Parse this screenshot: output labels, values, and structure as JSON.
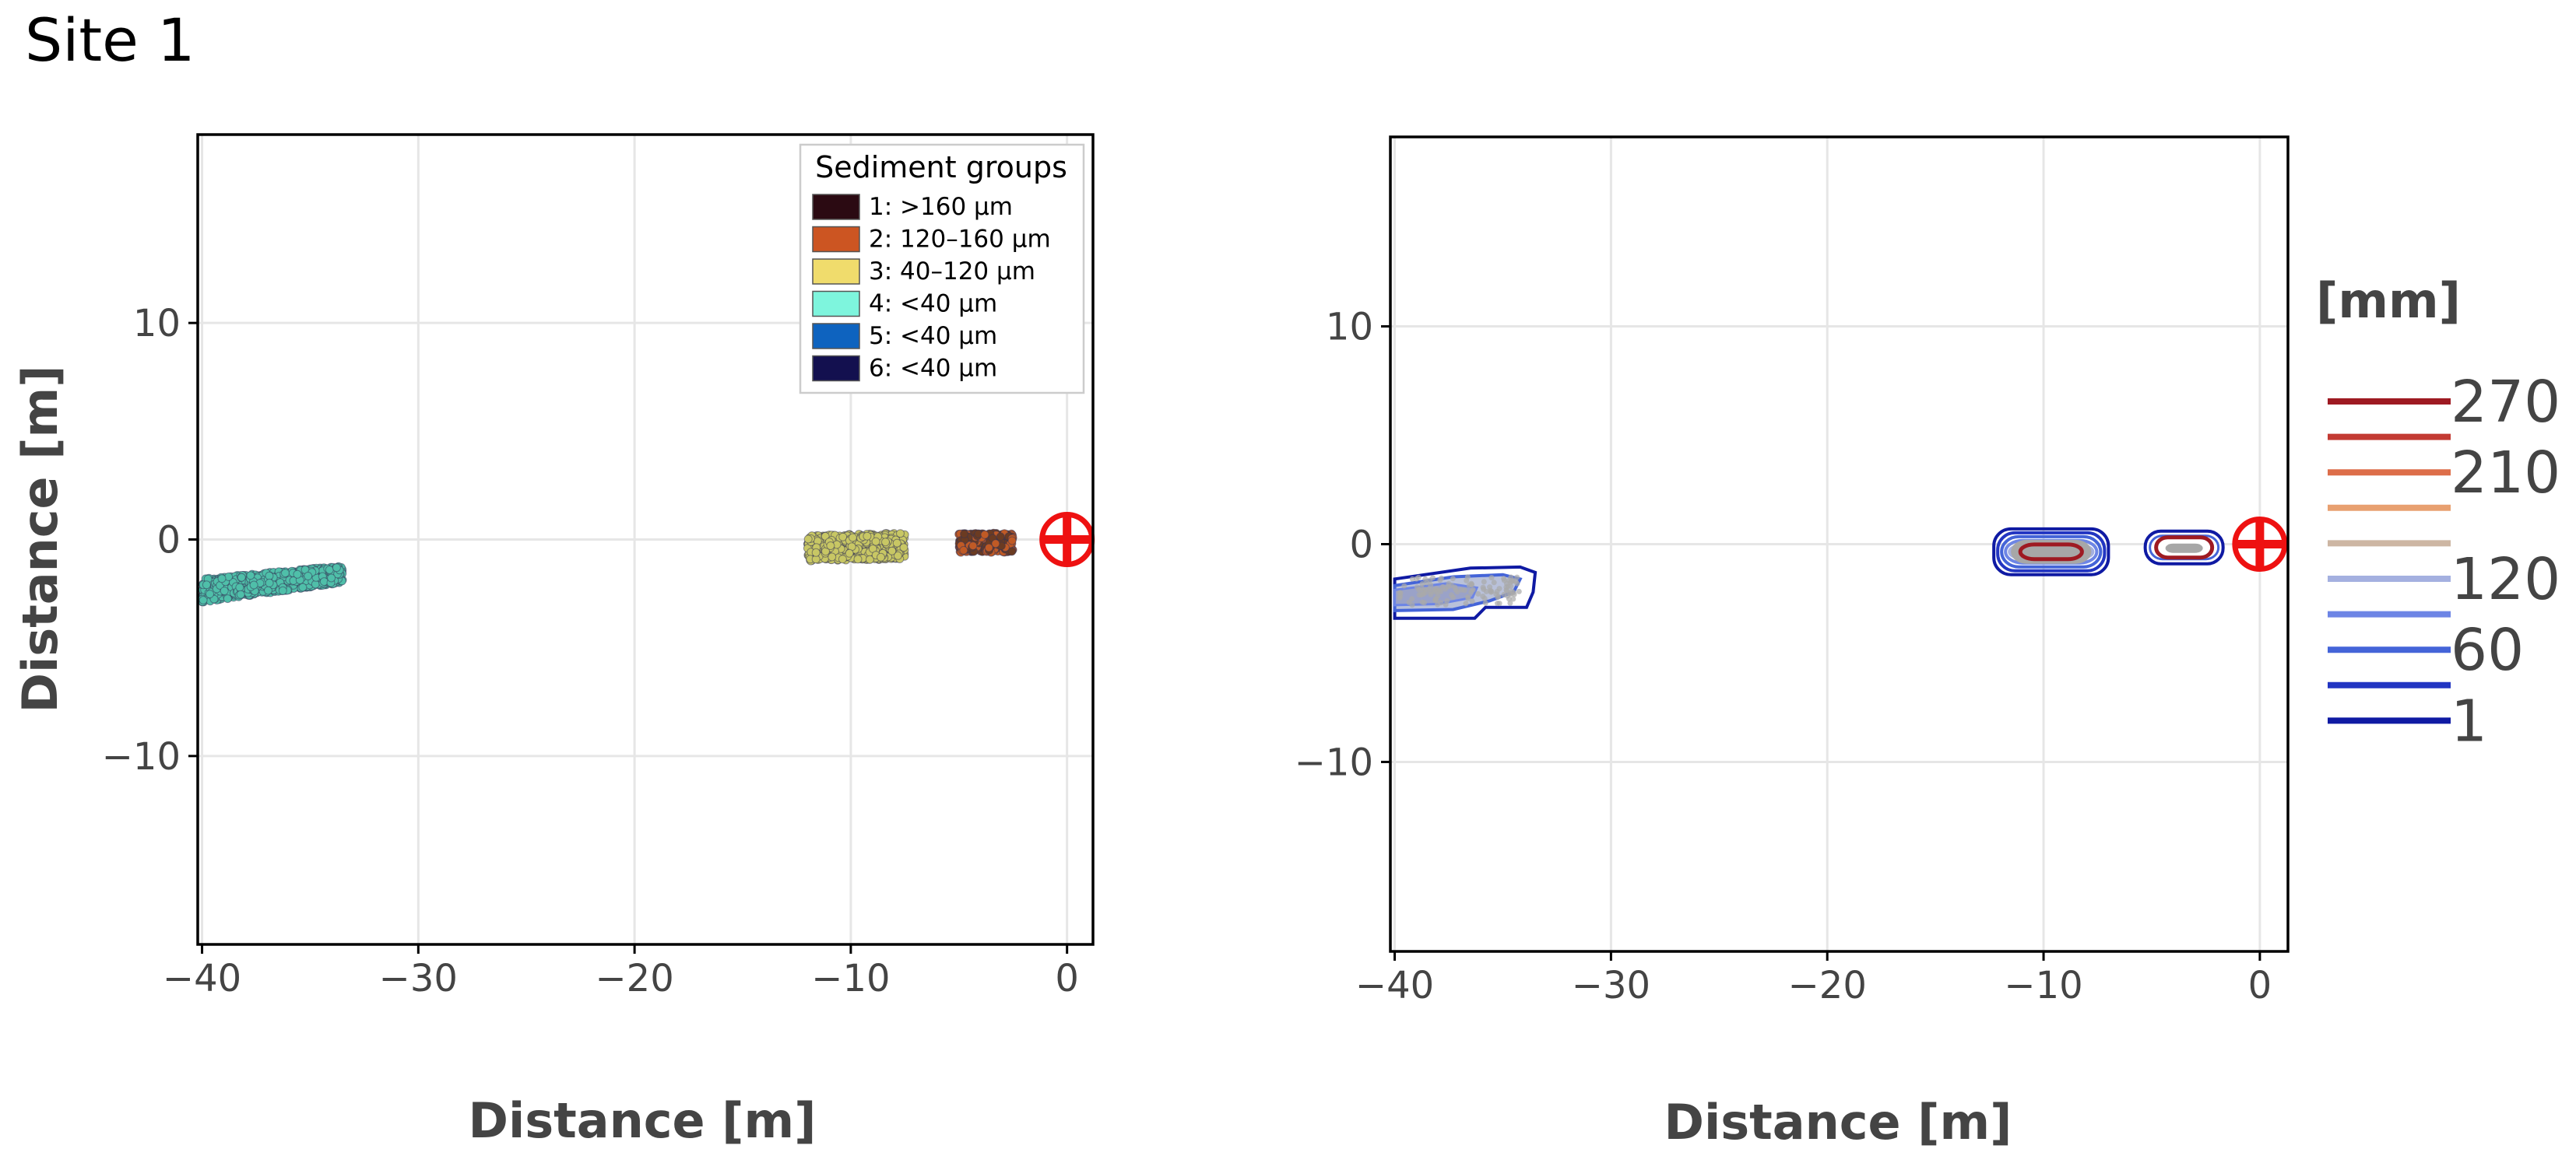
{
  "figure_title": "Site 1",
  "colors": {
    "group1": "#2b0a12",
    "group2": "#cc5522",
    "group3": "#f0dc6c",
    "group4": "#7ef5dd",
    "group5": "#0e63bf",
    "group6": "#13104f",
    "scatter_cluster_1": "#4fbfa9",
    "scatter_cluster_2": "#c8c764",
    "scatter_cluster_3": "#6b3b22",
    "scatter_cluster_3b": "#c05a25",
    "marker": "#ee1111",
    "contour_fill": "#a7a7a7",
    "grid": "#e6e6e6"
  },
  "chart_data": [
    {
      "type": "scatter",
      "title": "",
      "xlabel": "Distance [m]",
      "ylabel": "Distance [m]",
      "xlim": [
        -40.2,
        1.2
      ],
      "ylim": [
        -18.7,
        18.7
      ],
      "xticks": [
        -40,
        -30,
        -20,
        -10,
        0
      ],
      "yticks": [
        -10,
        0,
        10
      ],
      "xtick_labels": [
        "−40",
        "−30",
        "−20",
        "−10",
        "0"
      ],
      "ytick_labels": [
        "−10",
        "0",
        "10"
      ],
      "grid": true,
      "legend_position": "top-right",
      "legend": {
        "title": "Sediment groups",
        "entries": [
          {
            "label": "1: >160 µm",
            "color": "#2b0a12"
          },
          {
            "label": "2: 120–160 µm",
            "color": "#cc5522"
          },
          {
            "label": "3: 40–120 µm",
            "color": "#f0dc6c"
          },
          {
            "label": "4: <40 µm",
            "color": "#7ef5dd"
          },
          {
            "label": "5: <40 µm",
            "color": "#0e63bf"
          },
          {
            "label": "6: <40 µm",
            "color": "#13104f"
          }
        ]
      },
      "clusters": [
        {
          "group": "4: <40 µm",
          "x_range": [
            -40,
            -33.5
          ],
          "y_start": [
            -2.9,
            -1.8
          ],
          "y_end": [
            -2.0,
            -1.2
          ],
          "color": "#4fbfa9"
        },
        {
          "group": "3: 40–120 µm",
          "x_range": [
            -12,
            -7.5
          ],
          "y_start": [
            -1.0,
            0.2
          ],
          "y_end": [
            -0.9,
            0.3
          ],
          "color": "#c8c764"
        },
        {
          "group": "1: >160 µm / 2: 120–160 µm",
          "x_range": [
            -5,
            -2.5
          ],
          "y_start": [
            -0.6,
            0.3
          ],
          "y_end": [
            -0.6,
            0.3
          ],
          "color": "#6b3b22"
        }
      ],
      "markers": [
        {
          "name": "source",
          "x": 0,
          "y": 0
        }
      ]
    },
    {
      "type": "contour",
      "title": "",
      "xlabel": "Distance [m]",
      "ylabel": "",
      "xlim": [
        -40.2,
        1.3
      ],
      "ylim": [
        -18.7,
        18.7
      ],
      "xticks": [
        -40,
        -30,
        -20,
        -10,
        0
      ],
      "yticks": [
        -10,
        0,
        10
      ],
      "xtick_labels": [
        "−40",
        "−30",
        "−20",
        "−10",
        "0"
      ],
      "ytick_labels": [
        "−10",
        "0",
        "10"
      ],
      "grid": true,
      "colorbar": {
        "title": "[mm]",
        "levels": [
          {
            "value": 270,
            "label": "270",
            "color": "#9e1a22"
          },
          {
            "value": 240,
            "label": "",
            "color": "#c33a33"
          },
          {
            "value": 210,
            "label": "210",
            "color": "#dd6e4a"
          },
          {
            "value": 180,
            "label": "",
            "color": "#e8a070"
          },
          {
            "value": 150,
            "label": "",
            "color": "#cdb6a3"
          },
          {
            "value": 120,
            "label": "120",
            "color": "#a4b0e0"
          },
          {
            "value": 90,
            "label": "",
            "color": "#6d85e5"
          },
          {
            "value": 60,
            "label": "60",
            "color": "#4464d8"
          },
          {
            "value": 30,
            "label": "",
            "color": "#2235c2"
          },
          {
            "value": 1,
            "label": "1",
            "color": "#0f1aa3"
          }
        ]
      },
      "deposits": [
        {
          "name": "far",
          "x_range": [
            -40,
            -33.5
          ],
          "y_range": [
            -3.4,
            -1.0
          ],
          "max_level": 120
        },
        {
          "name": "middle",
          "x_range": [
            -12.3,
            -7.0
          ],
          "y_range": [
            -1.4,
            0.7
          ],
          "max_level": 270
        },
        {
          "name": "near",
          "x_range": [
            -5.3,
            -1.7
          ],
          "y_range": [
            -0.9,
            0.6
          ],
          "max_level": 270
        }
      ],
      "markers": [
        {
          "name": "source",
          "x": 0,
          "y": 0
        }
      ]
    }
  ]
}
